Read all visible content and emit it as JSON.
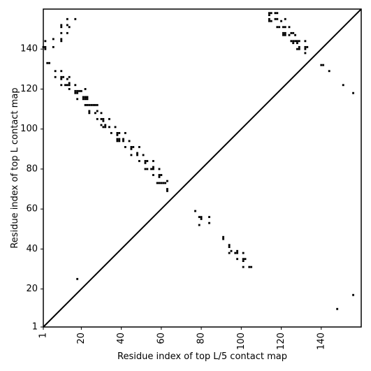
{
  "chart_data": {
    "type": "heatmap",
    "title": "",
    "xlabel": "Residue index of top L/5 contact map",
    "ylabel": "Residue index of top L contact map",
    "xlim": [
      1,
      160
    ],
    "ylim": [
      1,
      160
    ],
    "x_ticks": [
      1,
      20,
      40,
      60,
      80,
      100,
      120,
      140
    ],
    "y_ticks": [
      1,
      20,
      40,
      60,
      80,
      100,
      120,
      140
    ],
    "x_tick_rotation": "vertical",
    "grid": false,
    "legend": "none",
    "diagonal": {
      "from": [
        1,
        1
      ],
      "to": [
        160,
        160
      ],
      "color": "#000000"
    },
    "mark_color": "#000000",
    "upper_contacts": [
      [
        1,
        141
      ],
      [
        2,
        141
      ],
      [
        2,
        140
      ],
      [
        2,
        144
      ],
      [
        3,
        133
      ],
      [
        4,
        133
      ],
      [
        6,
        141
      ],
      [
        6,
        145
      ],
      [
        7,
        129
      ],
      [
        7,
        126
      ],
      [
        10,
        152
      ],
      [
        10,
        151
      ],
      [
        10,
        148
      ],
      [
        10,
        145
      ],
      [
        10,
        144
      ],
      [
        10,
        129
      ],
      [
        10,
        126
      ],
      [
        10,
        125
      ],
      [
        10,
        122
      ],
      [
        11,
        126
      ],
      [
        12,
        122
      ],
      [
        13,
        155
      ],
      [
        13,
        152
      ],
      [
        13,
        148
      ],
      [
        13,
        125
      ],
      [
        13,
        122
      ],
      [
        14,
        151
      ],
      [
        14,
        126
      ],
      [
        14,
        123
      ],
      [
        14,
        122
      ],
      [
        14,
        120
      ],
      [
        17,
        155
      ],
      [
        17,
        122
      ],
      [
        17,
        119
      ],
      [
        17,
        118
      ],
      [
        18,
        115
      ],
      [
        18,
        119
      ],
      [
        18,
        118
      ],
      [
        19,
        119
      ],
      [
        20,
        119
      ],
      [
        21,
        116
      ],
      [
        21,
        115
      ],
      [
        22,
        120
      ],
      [
        22,
        116
      ],
      [
        22,
        115
      ],
      [
        22,
        112
      ],
      [
        23,
        116
      ],
      [
        23,
        115
      ],
      [
        23,
        112
      ],
      [
        24,
        112
      ],
      [
        24,
        109
      ],
      [
        24,
        108
      ],
      [
        25,
        112
      ],
      [
        26,
        112
      ],
      [
        27,
        112
      ],
      [
        27,
        108
      ],
      [
        28,
        112
      ],
      [
        28,
        109
      ],
      [
        28,
        105
      ],
      [
        30,
        108
      ],
      [
        30,
        105
      ],
      [
        30,
        102
      ],
      [
        31,
        105
      ],
      [
        31,
        104
      ],
      [
        31,
        101
      ],
      [
        32,
        102
      ],
      [
        32,
        101
      ],
      [
        34,
        105
      ],
      [
        34,
        101
      ],
      [
        35,
        98
      ],
      [
        37,
        101
      ],
      [
        38,
        98
      ],
      [
        38,
        97
      ],
      [
        38,
        95
      ],
      [
        38,
        94
      ],
      [
        39,
        98
      ],
      [
        39,
        95
      ],
      [
        39,
        94
      ],
      [
        41,
        94
      ],
      [
        41,
        95
      ],
      [
        42,
        98
      ],
      [
        42,
        91
      ],
      [
        44,
        94
      ],
      [
        45,
        91
      ],
      [
        45,
        90
      ],
      [
        45,
        87
      ],
      [
        46,
        91
      ],
      [
        48,
        88
      ],
      [
        48,
        87
      ],
      [
        49,
        84
      ],
      [
        49,
        91
      ],
      [
        51,
        87
      ],
      [
        52,
        84
      ],
      [
        52,
        83
      ],
      [
        52,
        80
      ],
      [
        53,
        84
      ],
      [
        53,
        80
      ],
      [
        55,
        80
      ],
      [
        56,
        84
      ],
      [
        56,
        81
      ],
      [
        56,
        80
      ],
      [
        56,
        77
      ],
      [
        58,
        73
      ],
      [
        59,
        77
      ],
      [
        59,
        76
      ],
      [
        59,
        73
      ],
      [
        59,
        80
      ],
      [
        60,
        77
      ],
      [
        60,
        73
      ],
      [
        61,
        73
      ],
      [
        62,
        73
      ],
      [
        63,
        74
      ],
      [
        63,
        70
      ],
      [
        63,
        69
      ],
      [
        114,
        158
      ],
      [
        114,
        157
      ],
      [
        114,
        155
      ],
      [
        114,
        154
      ],
      [
        115,
        158
      ],
      [
        115,
        154
      ],
      [
        117,
        158
      ],
      [
        117,
        155
      ],
      [
        118,
        158
      ],
      [
        118,
        155
      ],
      [
        118,
        151
      ],
      [
        119,
        151
      ],
      [
        120,
        154
      ],
      [
        121,
        151
      ],
      [
        121,
        148
      ],
      [
        121,
        147
      ],
      [
        122,
        151
      ],
      [
        122,
        148
      ],
      [
        122,
        147
      ],
      [
        122,
        155
      ],
      [
        124,
        151
      ],
      [
        124,
        147
      ],
      [
        125,
        148
      ],
      [
        125,
        144
      ],
      [
        126,
        148
      ],
      [
        126,
        144
      ],
      [
        126,
        143
      ],
      [
        127,
        147
      ],
      [
        127,
        144
      ],
      [
        128,
        144
      ],
      [
        128,
        143
      ],
      [
        128,
        140
      ],
      [
        129,
        144
      ],
      [
        129,
        141
      ],
      [
        129,
        140
      ],
      [
        132,
        144
      ],
      [
        132,
        141
      ],
      [
        132,
        140
      ],
      [
        132,
        138
      ],
      [
        133,
        141
      ],
      [
        140,
        132
      ],
      [
        141,
        132
      ],
      [
        144,
        129
      ],
      [
        151,
        122
      ],
      [
        156,
        118
      ]
    ],
    "lower_contacts": [
      [
        18,
        25
      ],
      [
        77,
        59
      ],
      [
        79,
        56
      ],
      [
        79,
        52
      ],
      [
        80,
        56
      ],
      [
        80,
        55
      ],
      [
        84,
        56
      ],
      [
        84,
        53
      ],
      [
        91,
        46
      ],
      [
        91,
        45
      ],
      [
        94,
        42
      ],
      [
        94,
        41
      ],
      [
        94,
        38
      ],
      [
        95,
        39
      ],
      [
        97,
        38
      ],
      [
        98,
        39
      ],
      [
        98,
        38
      ],
      [
        98,
        35
      ],
      [
        101,
        38
      ],
      [
        101,
        35
      ],
      [
        101,
        34
      ],
      [
        101,
        31
      ],
      [
        102,
        35
      ],
      [
        104,
        31
      ],
      [
        105,
        31
      ],
      [
        148,
        10
      ],
      [
        156,
        17
      ]
    ]
  }
}
